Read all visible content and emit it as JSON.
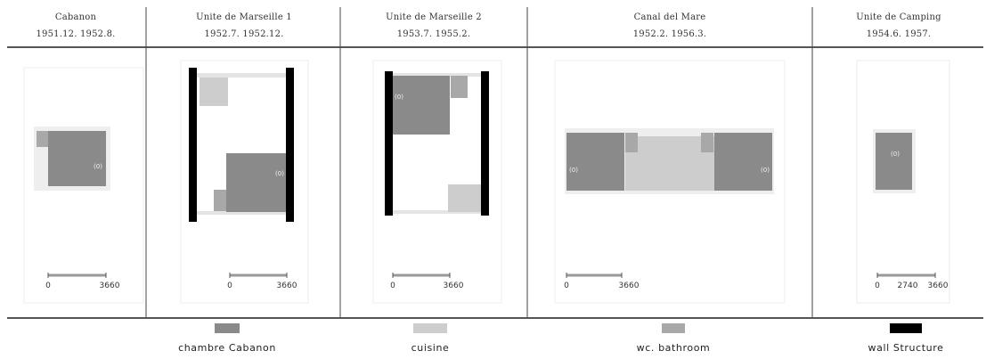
{
  "columns": [
    {
      "title": "Cabanon",
      "dates": "1951.12.   1952.8."
    },
    {
      "title": "Unite de Marseille 1",
      "dates": "1952.7.   1952.12."
    },
    {
      "title": "Unite de Marseille 2",
      "dates": "1953.7.   1955.2."
    },
    {
      "title": "Canal del Mare",
      "dates": "1952.2.   1956.3."
    },
    {
      "title": "Unite de Camping",
      "dates": "1954.6.   1957."
    }
  ],
  "room_labels": {
    "chambre": "(0)"
  },
  "scale_labels": {
    "zero": "0",
    "max": "3660",
    "mid": "2740"
  },
  "legend": [
    {
      "label": "chambre  Cabanon",
      "color": "#8a8a8a"
    },
    {
      "label": "cuisine",
      "color": "#cdcdcd"
    },
    {
      "label": "wc. bathroom",
      "color": "#a8a8a8"
    },
    {
      "label": "wall Structure",
      "color": "#000000"
    }
  ],
  "colors": {
    "chambre": "#8a8a8a",
    "cuisine": "#cdcdcd",
    "bathroom": "#a8a8a8",
    "wall": "#000000",
    "corridor": "#e2e2e2",
    "rule": "#555555"
  }
}
